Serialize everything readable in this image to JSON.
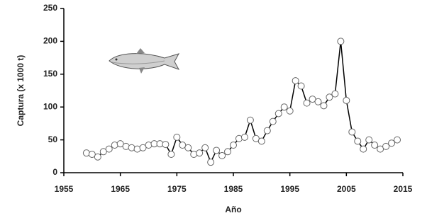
{
  "chart_data": {
    "type": "line",
    "x_label": "Año",
    "y_label": "Captura (x 1000 t)",
    "x": [
      1959,
      1960,
      1961,
      1962,
      1963,
      1964,
      1965,
      1966,
      1967,
      1968,
      1969,
      1970,
      1971,
      1972,
      1973,
      1974,
      1975,
      1976,
      1977,
      1978,
      1979,
      1980,
      1981,
      1982,
      1983,
      1984,
      1985,
      1986,
      1987,
      1988,
      1989,
      1990,
      1991,
      1992,
      1993,
      1994,
      1995,
      1996,
      1997,
      1998,
      1999,
      2000,
      2001,
      2002,
      2003,
      2004,
      2005,
      2006,
      2007,
      2008,
      2009,
      2010,
      2011,
      2012,
      2013,
      2014
    ],
    "series": [
      {
        "color": "#000000",
        "values": [
          30,
          28,
          24,
          32,
          36,
          42,
          44,
          40,
          38,
          36,
          38,
          42,
          44,
          44,
          43,
          28,
          54,
          42,
          38,
          28,
          30,
          38,
          16,
          34,
          26,
          32,
          42,
          52,
          54,
          80,
          52,
          48,
          64,
          78,
          90,
          100,
          94,
          140,
          132,
          106,
          112,
          108,
          102,
          115,
          120,
          200,
          110,
          62,
          48,
          36,
          50,
          42,
          36,
          40,
          45,
          50
        ]
      }
    ],
    "xlim": [
      1955,
      2015
    ],
    "xticks": [
      1955,
      1965,
      1975,
      1985,
      1995,
      2005,
      2015
    ],
    "ylim": [
      0,
      250
    ],
    "yticks": [
      0,
      50,
      100,
      150,
      200,
      250
    ],
    "grid": false
  }
}
